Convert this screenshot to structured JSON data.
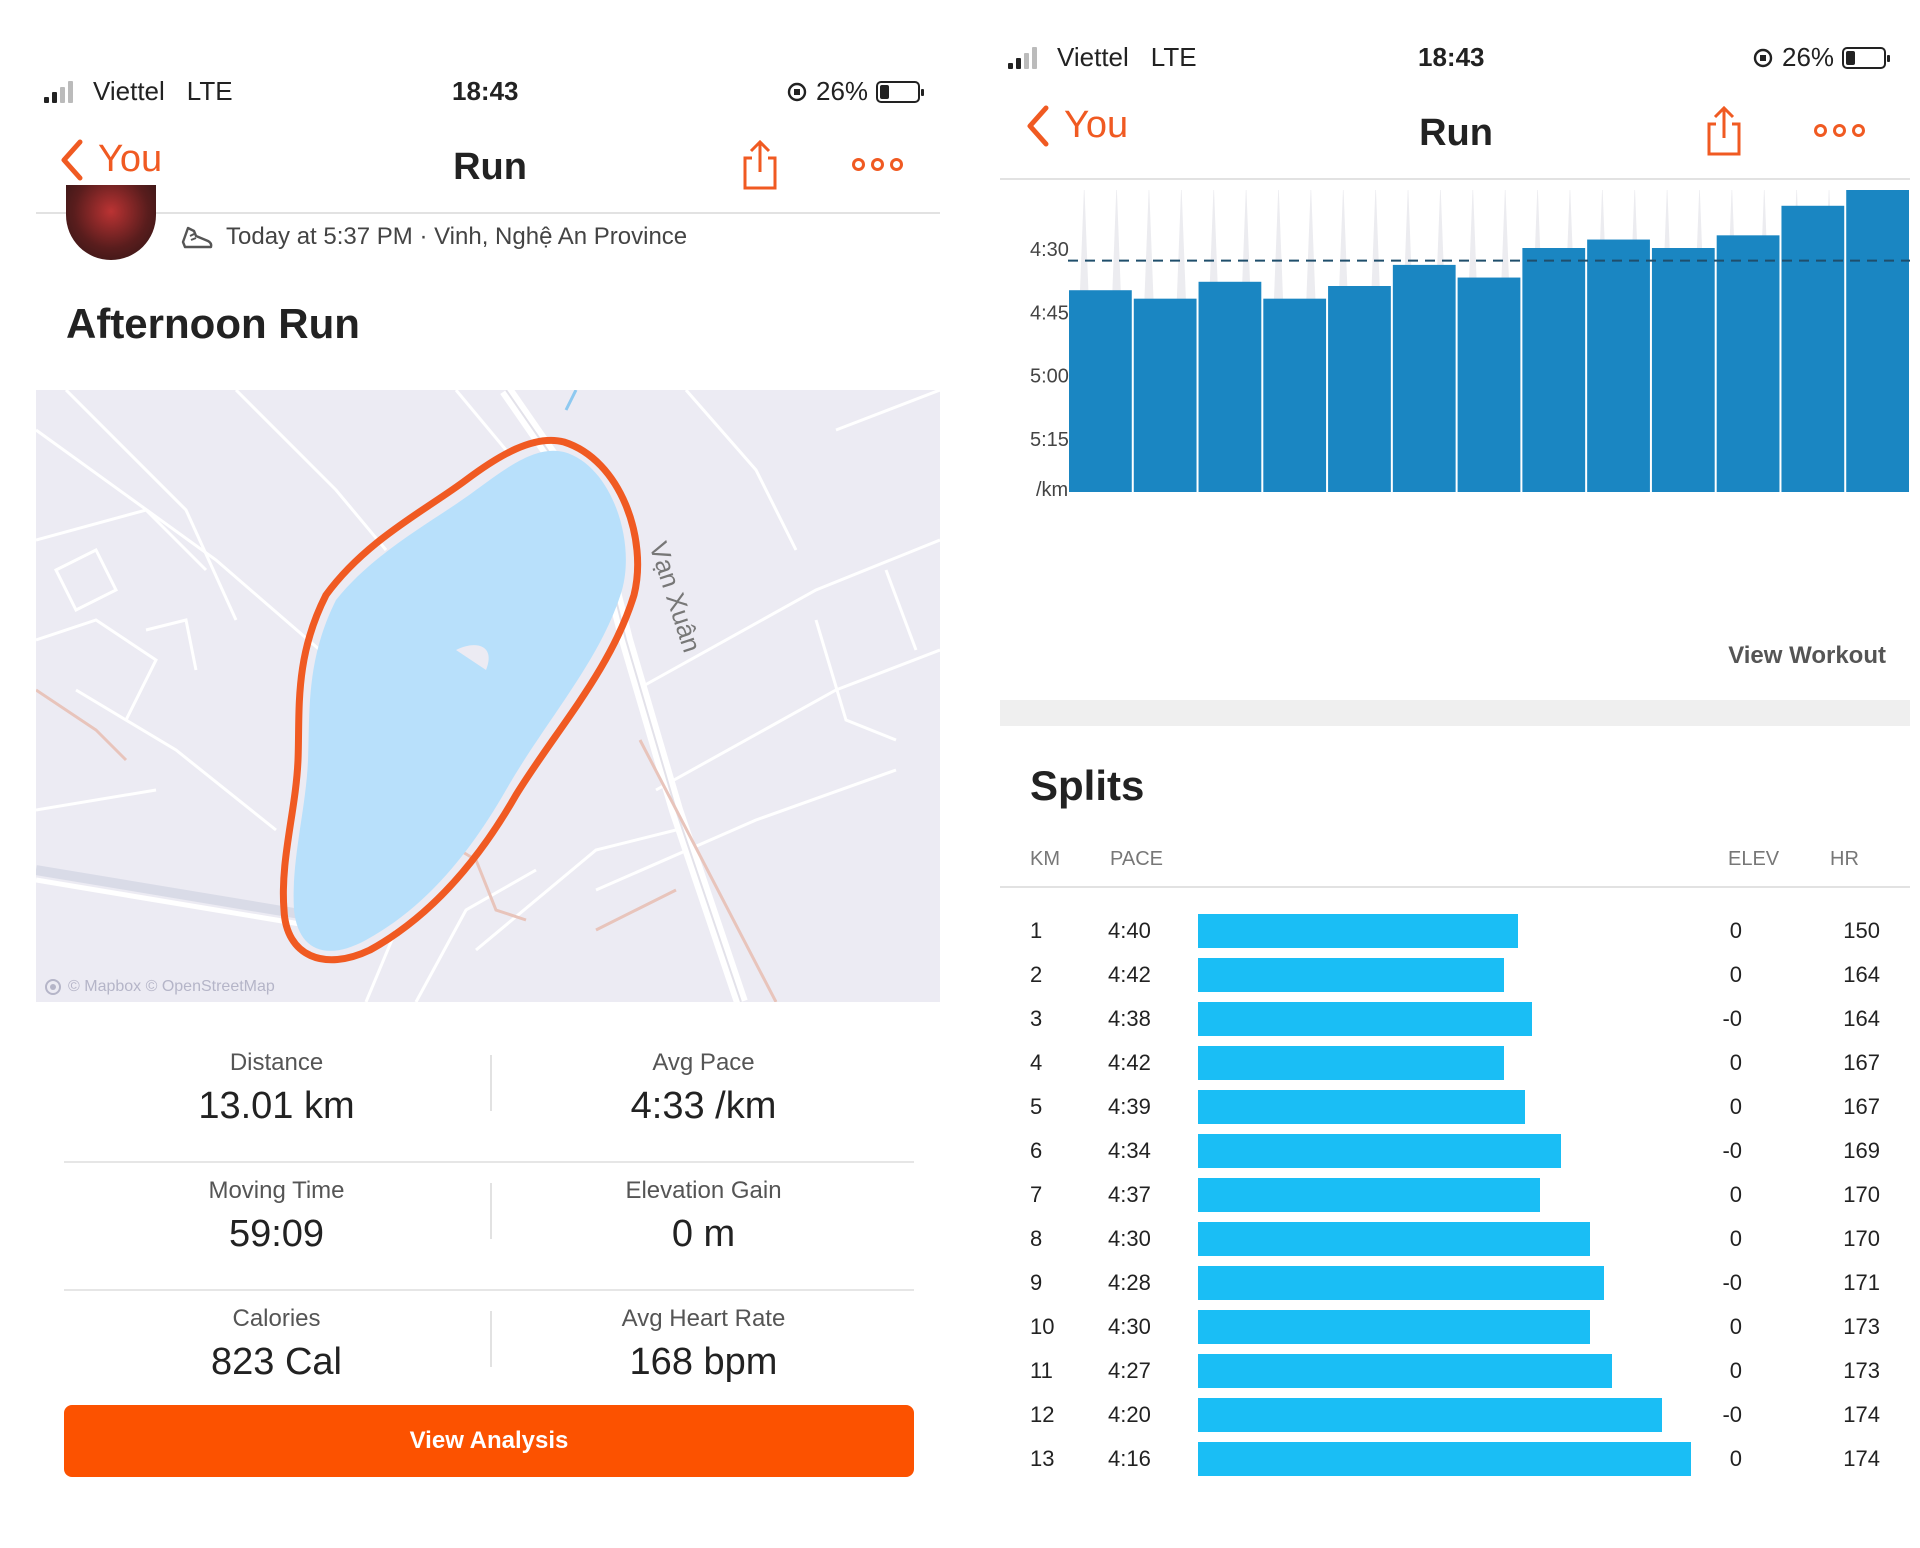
{
  "status_bar": {
    "carrier": "Viettel",
    "network": "LTE",
    "time": "18:43",
    "battery": "26%",
    "battery_level": 0.26
  },
  "nav": {
    "back_label": "You",
    "title": "Run"
  },
  "activity": {
    "meta": "Today at 5:37 PM · Vinh, Nghệ An Province",
    "title": "Afternoon Run"
  },
  "map": {
    "road_label": "Vạn Xuân",
    "attribution": "© Mapbox © OpenStreetMap",
    "route_color": "#f05a22",
    "water_color": "#b8e0fb"
  },
  "stats": [
    {
      "label": "Distance",
      "value": "13.01 km"
    },
    {
      "label": "Avg Pace",
      "value": "4:33 /km"
    },
    {
      "label": "Moving Time",
      "value": "59:09"
    },
    {
      "label": "Elevation Gain",
      "value": "0 m"
    },
    {
      "label": "Calories",
      "value": "823 Cal"
    },
    {
      "label": "Avg Heart Rate",
      "value": "168 bpm"
    }
  ],
  "analysis_button": "View Analysis",
  "view_workout": "View Workout",
  "chart_data": {
    "type": "bar",
    "x": [
      1,
      2,
      3,
      4,
      5,
      6,
      7,
      8,
      9,
      10,
      11,
      12,
      13
    ],
    "values": [
      "4:40",
      "4:42",
      "4:38",
      "4:42",
      "4:39",
      "4:34",
      "4:37",
      "4:30",
      "4:28",
      "4:30",
      "4:27",
      "4:20",
      "4:16"
    ],
    "y_tick_labels": [
      "4:30",
      "4:45",
      "5:00",
      "5:15"
    ],
    "y_unit_label": "/km",
    "y_axis": "pace, inverted (faster at top)",
    "avg_line": "4:33",
    "bar_color": "#1a86c2",
    "grid": false
  },
  "splits": {
    "title": "Splits",
    "headers": {
      "km": "KM",
      "pace": "PACE",
      "elev": "ELEV",
      "hr": "HR"
    },
    "bar_color": "#1abef5",
    "rows": [
      {
        "km": "1",
        "pace": "4:40",
        "elev": "0",
        "hr": "150"
      },
      {
        "km": "2",
        "pace": "4:42",
        "elev": "0",
        "hr": "164"
      },
      {
        "km": "3",
        "pace": "4:38",
        "elev": "-0",
        "hr": "164"
      },
      {
        "km": "4",
        "pace": "4:42",
        "elev": "0",
        "hr": "167"
      },
      {
        "km": "5",
        "pace": "4:39",
        "elev": "0",
        "hr": "167"
      },
      {
        "km": "6",
        "pace": "4:34",
        "elev": "-0",
        "hr": "169"
      },
      {
        "km": "7",
        "pace": "4:37",
        "elev": "0",
        "hr": "170"
      },
      {
        "km": "8",
        "pace": "4:30",
        "elev": "0",
        "hr": "170"
      },
      {
        "km": "9",
        "pace": "4:28",
        "elev": "-0",
        "hr": "171"
      },
      {
        "km": "10",
        "pace": "4:30",
        "elev": "0",
        "hr": "173"
      },
      {
        "km": "11",
        "pace": "4:27",
        "elev": "0",
        "hr": "173"
      },
      {
        "km": "12",
        "pace": "4:20",
        "elev": "-0",
        "hr": "174"
      },
      {
        "km": "13",
        "pace": "4:16",
        "elev": "0",
        "hr": "174"
      }
    ]
  },
  "icons": {
    "back": "chevron-left-icon",
    "share": "share-icon",
    "more": "more-icon",
    "shoe": "shoe-icon",
    "orientation": "orientation-lock-icon"
  }
}
